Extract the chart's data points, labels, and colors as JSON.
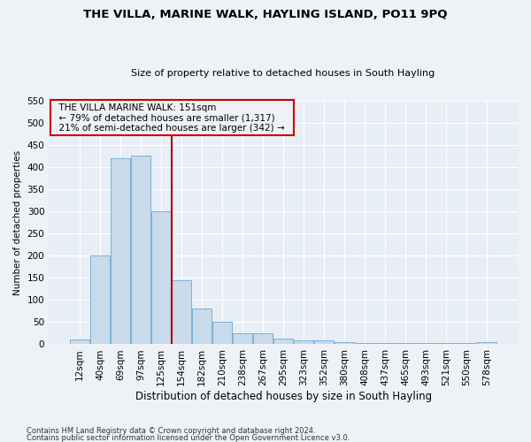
{
  "title1": "THE VILLA, MARINE WALK, HAYLING ISLAND, PO11 9PQ",
  "title2": "Size of property relative to detached houses in South Hayling",
  "xlabel": "Distribution of detached houses by size in South Hayling",
  "ylabel": "Number of detached properties",
  "bar_values": [
    10,
    200,
    420,
    425,
    300,
    145,
    80,
    50,
    25,
    25,
    12,
    8,
    8,
    5,
    3,
    3,
    2,
    2,
    2,
    2,
    5
  ],
  "bar_labels": [
    "12sqm",
    "40sqm",
    "69sqm",
    "97sqm",
    "125sqm",
    "154sqm",
    "182sqm",
    "210sqm",
    "238sqm",
    "267sqm",
    "295sqm",
    "323sqm",
    "352sqm",
    "380sqm",
    "408sqm",
    "437sqm",
    "465sqm",
    "493sqm",
    "521sqm",
    "550sqm",
    "578sqm"
  ],
  "bar_color": "#c9daea",
  "bar_edge_color": "#6aaad4",
  "vline_x": 4.5,
  "vline_color": "#aa0000",
  "annotation_text": "  THE VILLA MARINE WALK: 151sqm  \n  ← 79% of detached houses are smaller (1,317)  \n  21% of semi-detached houses are larger (342) →  ",
  "annotation_box_color": "#cc0000",
  "ylim": [
    0,
    550
  ],
  "yticks": [
    0,
    50,
    100,
    150,
    200,
    250,
    300,
    350,
    400,
    450,
    500,
    550
  ],
  "footnote1": "Contains HM Land Registry data © Crown copyright and database right 2024.",
  "footnote2": "Contains public sector information licensed under the Open Government Licence v3.0.",
  "bg_color": "#eef2f7",
  "plot_bg_color": "#e8eef6",
  "title1_fontsize": 9.5,
  "title2_fontsize": 8.0,
  "xlabel_fontsize": 8.5,
  "ylabel_fontsize": 7.5,
  "tick_fontsize": 7.5,
  "annot_fontsize": 7.5,
  "footnote_fontsize": 6.0
}
